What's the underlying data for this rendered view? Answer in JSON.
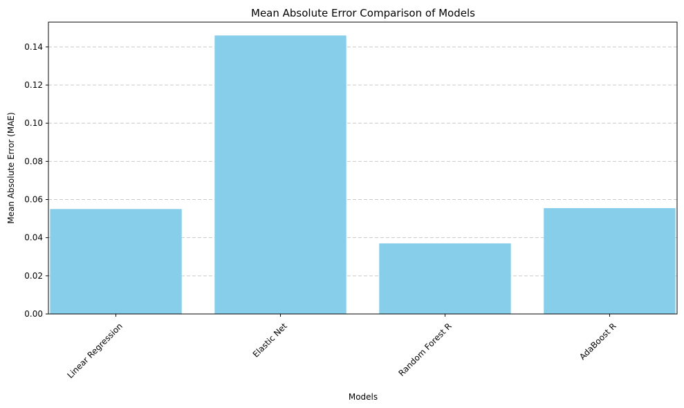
{
  "chart_data": {
    "type": "bar",
    "title": "Mean Absolute Error Comparison of Models",
    "xlabel": "Models",
    "ylabel": "Mean Absolute Error (MAE)",
    "categories": [
      "Linear Regression",
      "Elastic Net",
      "Random Forest R",
      "AdaBoost R"
    ],
    "values": [
      0.055,
      0.146,
      0.037,
      0.0555
    ],
    "ylim": [
      0,
      0.153
    ],
    "yticks": [
      0.0,
      0.02,
      0.04,
      0.06,
      0.08,
      0.1,
      0.12,
      0.14
    ],
    "ytick_labels": [
      "0.00",
      "0.02",
      "0.04",
      "0.06",
      "0.08",
      "0.10",
      "0.12",
      "0.14"
    ],
    "grid": "y-dashed",
    "bar_color": "#87ceeb",
    "grid_color": "#c8c8c8",
    "axis_color": "#000000"
  }
}
